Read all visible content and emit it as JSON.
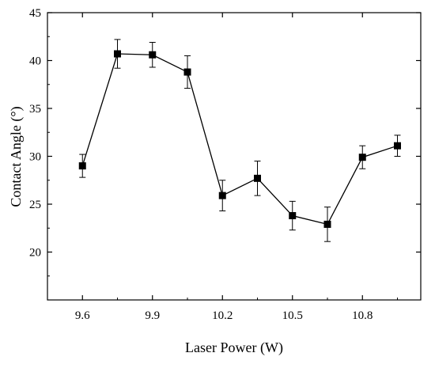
{
  "chart_data": {
    "type": "line",
    "title": "",
    "xlabel": "Laser Power (W)",
    "ylabel": "Contact Angle (°)",
    "xlim": [
      9.45,
      11.05
    ],
    "ylim": [
      15,
      45
    ],
    "xticks": [
      9.6,
      9.9,
      10.2,
      10.5,
      10.8
    ],
    "xtick_labels": [
      "9.6",
      "9.9",
      "10.2",
      "10.5",
      "10.8"
    ],
    "yticks": [
      20,
      25,
      30,
      35,
      40,
      45
    ],
    "ytick_labels": [
      "20",
      "25",
      "30",
      "35",
      "40",
      "45"
    ],
    "grid": false,
    "legend": "none",
    "marker": "square",
    "error_bars": true,
    "series": [
      {
        "x": [
          9.6,
          9.75,
          9.9,
          10.05,
          10.2,
          10.35,
          10.5,
          10.65,
          10.8,
          10.95
        ],
        "y": [
          29.0,
          40.7,
          40.6,
          38.8,
          25.9,
          27.7,
          23.8,
          22.9,
          29.9,
          31.1
        ],
        "yerr": [
          1.2,
          1.5,
          1.3,
          1.7,
          1.6,
          1.8,
          1.5,
          1.8,
          1.2,
          1.1
        ],
        "color": "#000000"
      }
    ]
  }
}
